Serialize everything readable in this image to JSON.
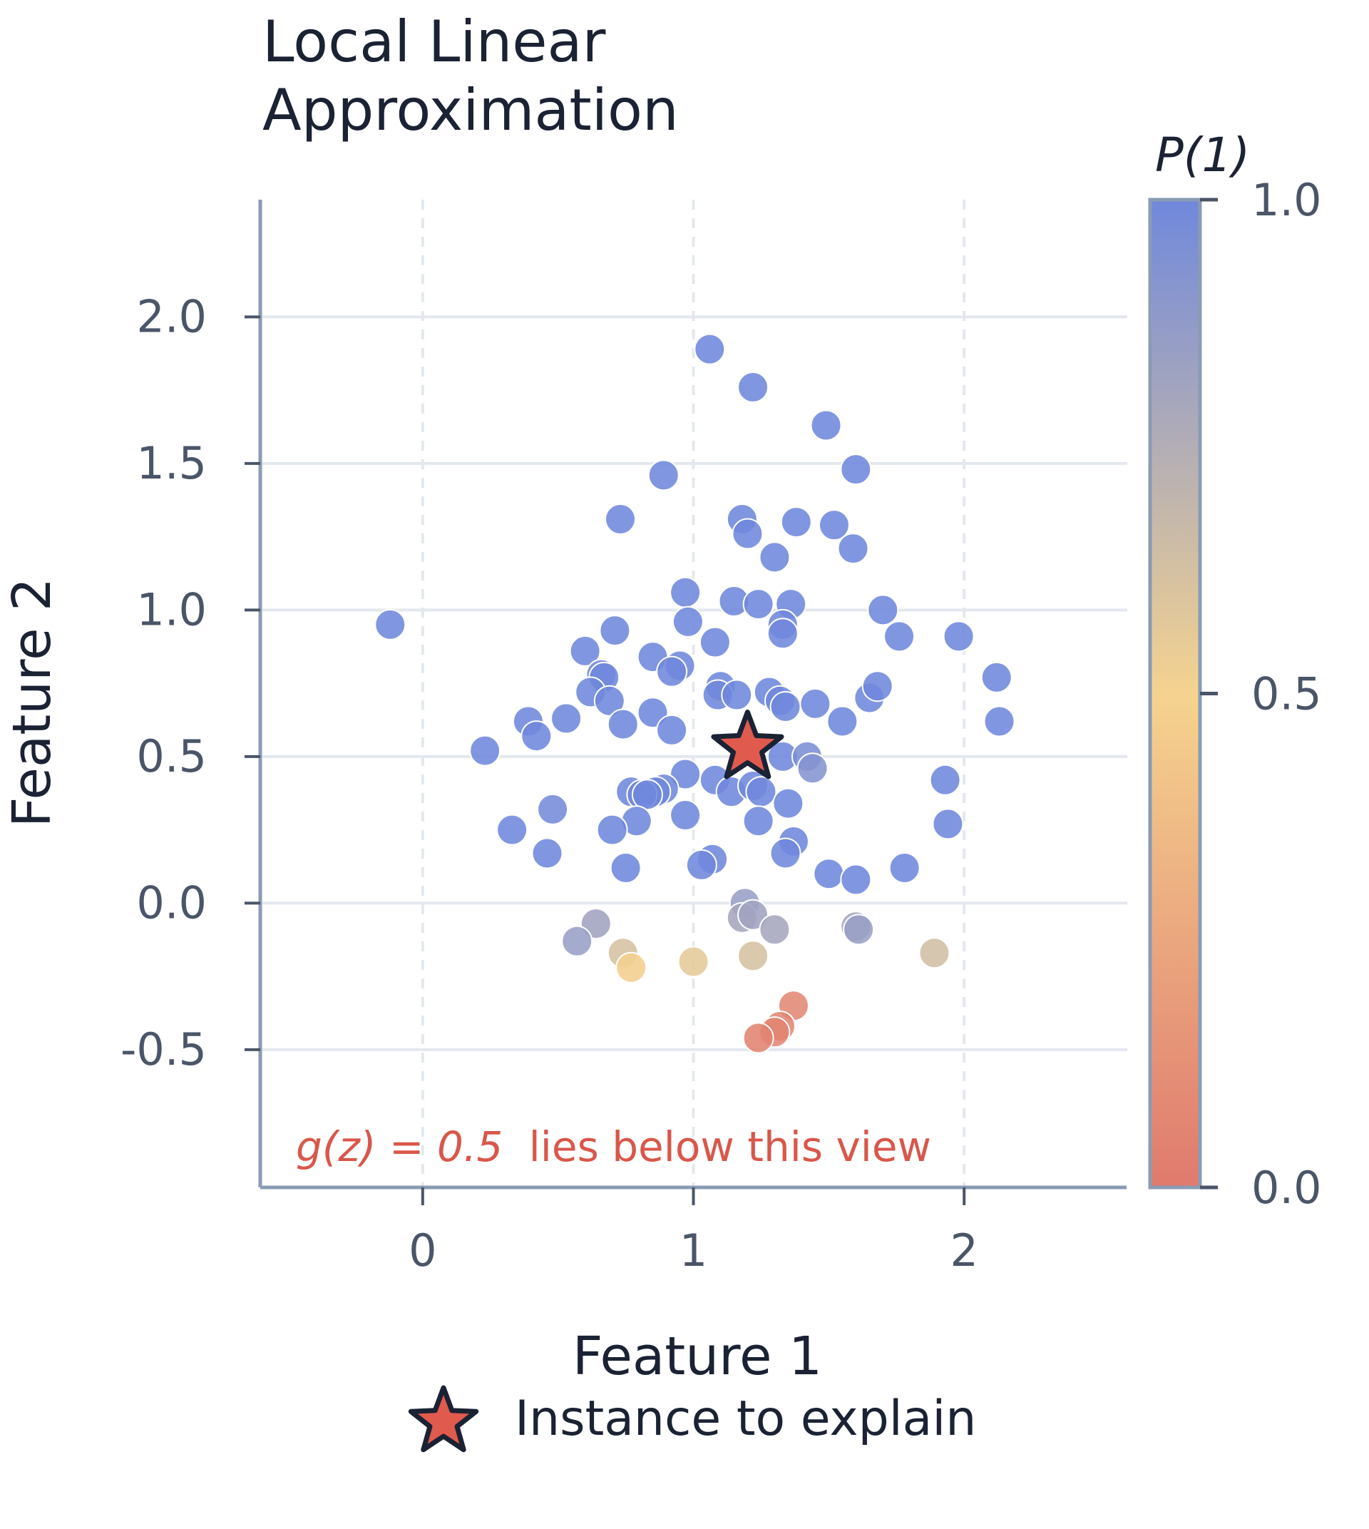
{
  "chart_data": {
    "type": "scatter",
    "title": [
      "Local Linear",
      "Approximation"
    ],
    "xlabel": "Feature 1",
    "ylabel": "Feature 2",
    "xlim": [
      -0.6,
      2.6
    ],
    "ylim": [
      -0.97,
      2.4
    ],
    "xticks": [
      0,
      1,
      2
    ],
    "xtick_labels": [
      "0",
      "1",
      "2"
    ],
    "yticks": [
      -0.5,
      0.0,
      0.5,
      1.0,
      1.5,
      2.0
    ],
    "ytick_labels": [
      "-0.5",
      "0.0",
      "0.5",
      "1.0",
      "1.5",
      "2.0"
    ],
    "grid": true,
    "colorbar": {
      "label": "P(1)",
      "range": [
        0.0,
        1.0
      ],
      "ticks": [
        0.0,
        0.5,
        1.0
      ],
      "tick_labels": [
        "0.0",
        "0.5",
        "1.0"
      ],
      "colors": [
        "#e07a6e",
        "#f5d38f",
        "#7088dc"
      ]
    },
    "annotation": {
      "math": "g(z) = 0.5",
      "text": "lies below this view",
      "color": "#d9574a"
    },
    "instance": {
      "x": 1.2,
      "y": 0.53,
      "label": "Instance to explain",
      "color": "#e05a4e"
    },
    "points": [
      {
        "x": 1.06,
        "y": 1.89,
        "p": 1.0
      },
      {
        "x": 1.22,
        "y": 1.76,
        "p": 1.0
      },
      {
        "x": 1.49,
        "y": 1.63,
        "p": 1.0
      },
      {
        "x": 1.6,
        "y": 1.48,
        "p": 1.0
      },
      {
        "x": 0.89,
        "y": 1.46,
        "p": 1.0
      },
      {
        "x": 0.73,
        "y": 1.31,
        "p": 1.0
      },
      {
        "x": 1.18,
        "y": 1.31,
        "p": 1.0
      },
      {
        "x": 1.2,
        "y": 1.26,
        "p": 1.0
      },
      {
        "x": 1.38,
        "y": 1.3,
        "p": 1.0
      },
      {
        "x": 1.52,
        "y": 1.29,
        "p": 1.0
      },
      {
        "x": 1.59,
        "y": 1.21,
        "p": 1.0
      },
      {
        "x": 1.3,
        "y": 1.18,
        "p": 1.0
      },
      {
        "x": 0.97,
        "y": 1.06,
        "p": 1.0
      },
      {
        "x": 1.15,
        "y": 1.03,
        "p": 1.0
      },
      {
        "x": 1.24,
        "y": 1.02,
        "p": 1.0
      },
      {
        "x": 1.36,
        "y": 1.02,
        "p": 1.0
      },
      {
        "x": 1.33,
        "y": 0.95,
        "p": 1.0
      },
      {
        "x": 1.33,
        "y": 0.92,
        "p": 1.0
      },
      {
        "x": 0.98,
        "y": 0.96,
        "p": 1.0
      },
      {
        "x": 1.7,
        "y": 1.0,
        "p": 1.0
      },
      {
        "x": 1.76,
        "y": 0.91,
        "p": 1.0
      },
      {
        "x": 1.98,
        "y": 0.91,
        "p": 1.0
      },
      {
        "x": -0.12,
        "y": 0.95,
        "p": 1.0
      },
      {
        "x": 0.71,
        "y": 0.93,
        "p": 1.0
      },
      {
        "x": 0.6,
        "y": 0.86,
        "p": 1.0
      },
      {
        "x": 1.08,
        "y": 0.89,
        "p": 1.0
      },
      {
        "x": 0.85,
        "y": 0.84,
        "p": 1.0
      },
      {
        "x": 0.95,
        "y": 0.81,
        "p": 1.0
      },
      {
        "x": 0.92,
        "y": 0.79,
        "p": 1.0
      },
      {
        "x": 0.66,
        "y": 0.78,
        "p": 1.0
      },
      {
        "x": 0.67,
        "y": 0.77,
        "p": 1.0
      },
      {
        "x": 0.62,
        "y": 0.72,
        "p": 1.0
      },
      {
        "x": 0.69,
        "y": 0.69,
        "p": 1.0
      },
      {
        "x": 1.1,
        "y": 0.74,
        "p": 1.0
      },
      {
        "x": 1.09,
        "y": 0.71,
        "p": 1.0
      },
      {
        "x": 1.16,
        "y": 0.71,
        "p": 1.0
      },
      {
        "x": 1.28,
        "y": 0.72,
        "p": 1.0
      },
      {
        "x": 1.32,
        "y": 0.69,
        "p": 1.0
      },
      {
        "x": 1.34,
        "y": 0.67,
        "p": 1.0
      },
      {
        "x": 1.45,
        "y": 0.68,
        "p": 1.0
      },
      {
        "x": 1.65,
        "y": 0.7,
        "p": 1.0
      },
      {
        "x": 1.68,
        "y": 0.74,
        "p": 1.0
      },
      {
        "x": 2.12,
        "y": 0.77,
        "p": 1.0
      },
      {
        "x": 2.13,
        "y": 0.62,
        "p": 1.0
      },
      {
        "x": 1.55,
        "y": 0.62,
        "p": 1.0
      },
      {
        "x": 0.85,
        "y": 0.65,
        "p": 1.0
      },
      {
        "x": 0.74,
        "y": 0.61,
        "p": 1.0
      },
      {
        "x": 0.92,
        "y": 0.59,
        "p": 1.0
      },
      {
        "x": 0.53,
        "y": 0.63,
        "p": 1.0
      },
      {
        "x": 0.39,
        "y": 0.62,
        "p": 1.0
      },
      {
        "x": 0.42,
        "y": 0.57,
        "p": 1.0
      },
      {
        "x": 0.23,
        "y": 0.52,
        "p": 1.0
      },
      {
        "x": 1.33,
        "y": 0.5,
        "p": 1.0
      },
      {
        "x": 1.42,
        "y": 0.5,
        "p": 0.96
      },
      {
        "x": 1.44,
        "y": 0.46,
        "p": 0.92
      },
      {
        "x": 1.93,
        "y": 0.42,
        "p": 1.0
      },
      {
        "x": 0.97,
        "y": 0.44,
        "p": 1.0
      },
      {
        "x": 1.08,
        "y": 0.42,
        "p": 1.0
      },
      {
        "x": 1.14,
        "y": 0.38,
        "p": 1.0
      },
      {
        "x": 1.22,
        "y": 0.4,
        "p": 1.0
      },
      {
        "x": 1.25,
        "y": 0.38,
        "p": 1.0
      },
      {
        "x": 0.89,
        "y": 0.39,
        "p": 1.0
      },
      {
        "x": 0.86,
        "y": 0.38,
        "p": 1.0
      },
      {
        "x": 0.77,
        "y": 0.38,
        "p": 1.0
      },
      {
        "x": 0.81,
        "y": 0.37,
        "p": 1.0
      },
      {
        "x": 0.83,
        "y": 0.37,
        "p": 1.0
      },
      {
        "x": 1.35,
        "y": 0.34,
        "p": 1.0
      },
      {
        "x": 0.48,
        "y": 0.32,
        "p": 0.98
      },
      {
        "x": 0.97,
        "y": 0.3,
        "p": 1.0
      },
      {
        "x": 0.79,
        "y": 0.28,
        "p": 1.0
      },
      {
        "x": 1.24,
        "y": 0.28,
        "p": 1.0
      },
      {
        "x": 1.94,
        "y": 0.27,
        "p": 1.0
      },
      {
        "x": 0.33,
        "y": 0.25,
        "p": 1.0
      },
      {
        "x": 0.7,
        "y": 0.25,
        "p": 1.0
      },
      {
        "x": 1.37,
        "y": 0.21,
        "p": 1.0
      },
      {
        "x": 1.34,
        "y": 0.17,
        "p": 1.0
      },
      {
        "x": 0.46,
        "y": 0.17,
        "p": 1.0
      },
      {
        "x": 1.07,
        "y": 0.15,
        "p": 1.0
      },
      {
        "x": 1.03,
        "y": 0.13,
        "p": 1.0
      },
      {
        "x": 0.75,
        "y": 0.12,
        "p": 1.0
      },
      {
        "x": 1.5,
        "y": 0.1,
        "p": 1.0
      },
      {
        "x": 1.6,
        "y": 0.08,
        "p": 1.0
      },
      {
        "x": 1.78,
        "y": 0.12,
        "p": 1.0
      },
      {
        "x": 1.19,
        "y": 0.0,
        "p": 0.85
      },
      {
        "x": 1.18,
        "y": -0.05,
        "p": 0.8
      },
      {
        "x": 1.22,
        "y": -0.04,
        "p": 0.82
      },
      {
        "x": 1.3,
        "y": -0.09,
        "p": 0.8
      },
      {
        "x": 1.6,
        "y": -0.08,
        "p": 0.8
      },
      {
        "x": 1.61,
        "y": -0.09,
        "p": 0.85
      },
      {
        "x": 0.64,
        "y": -0.07,
        "p": 0.82
      },
      {
        "x": 0.57,
        "y": -0.13,
        "p": 0.85
      },
      {
        "x": 0.74,
        "y": -0.17,
        "p": 0.62
      },
      {
        "x": 1.22,
        "y": -0.18,
        "p": 0.62
      },
      {
        "x": 1.89,
        "y": -0.17,
        "p": 0.64
      },
      {
        "x": 1.0,
        "y": -0.2,
        "p": 0.56
      },
      {
        "x": 0.77,
        "y": -0.22,
        "p": 0.47
      },
      {
        "x": 1.37,
        "y": -0.35,
        "p": 0.08
      },
      {
        "x": 1.32,
        "y": -0.42,
        "p": 0.06
      },
      {
        "x": 1.3,
        "y": -0.44,
        "p": 0.06
      },
      {
        "x": 1.24,
        "y": -0.46,
        "p": 0.05
      }
    ]
  }
}
